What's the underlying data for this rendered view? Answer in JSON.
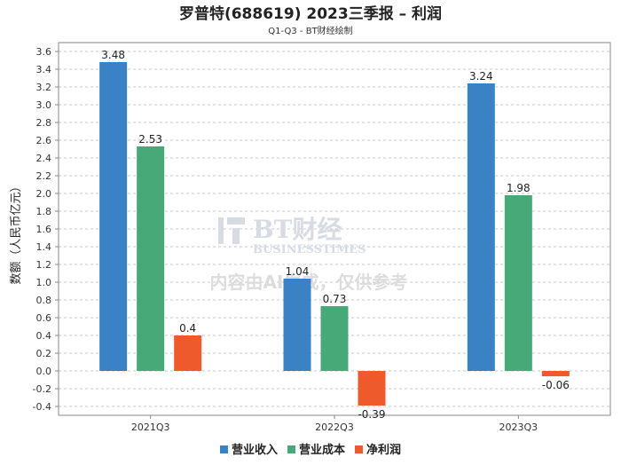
{
  "chart_data": {
    "type": "bar",
    "title": "罗普特(688619) 2023三季报 – 利润",
    "subtitle": "Q1-Q3 - BT财经绘制",
    "ylabel": "数额（人民币亿元）",
    "xlabel": "",
    "categories": [
      "2021Q3",
      "2022Q3",
      "2023Q3"
    ],
    "ylim": [
      -0.5,
      3.7
    ],
    "yticks": [
      -0.4,
      -0.2,
      0.0,
      0.2,
      0.4,
      0.6,
      0.8,
      1.0,
      1.2,
      1.4,
      1.6,
      1.8,
      2.0,
      2.2,
      2.4,
      2.6,
      2.8,
      3.0,
      3.2,
      3.4,
      3.6
    ],
    "ytick_labels": [
      "-0.4",
      "-0.2",
      "0.0",
      "0.2",
      "0.4",
      "0.6",
      "0.8",
      "1.0",
      "1.2",
      "1.4",
      "1.6",
      "1.8",
      "2.0",
      "2.2",
      "2.4",
      "2.6",
      "2.8",
      "3.0",
      "3.2",
      "3.4",
      "3.6"
    ],
    "grid": true,
    "legend_position": "bottom-center",
    "series": [
      {
        "name": "营业收入",
        "color": "#3a82c4",
        "values": [
          3.48,
          1.04,
          3.24
        ],
        "labels": [
          "3.48",
          "1.04",
          "3.24"
        ]
      },
      {
        "name": "营业成本",
        "color": "#47a878",
        "values": [
          2.53,
          0.73,
          1.98
        ],
        "labels": [
          "2.53",
          "0.73",
          "1.98"
        ]
      },
      {
        "name": "净利润",
        "color": "#ee5a2c",
        "values": [
          0.4,
          -0.39,
          -0.06
        ],
        "labels": [
          "0.4",
          "-0.39",
          "-0.06"
        ]
      }
    ]
  },
  "watermark": {
    "brand": "BT财经",
    "brand_en": "BUSINESSTIMES",
    "notice": "内容由AI生成，仅供参考"
  }
}
